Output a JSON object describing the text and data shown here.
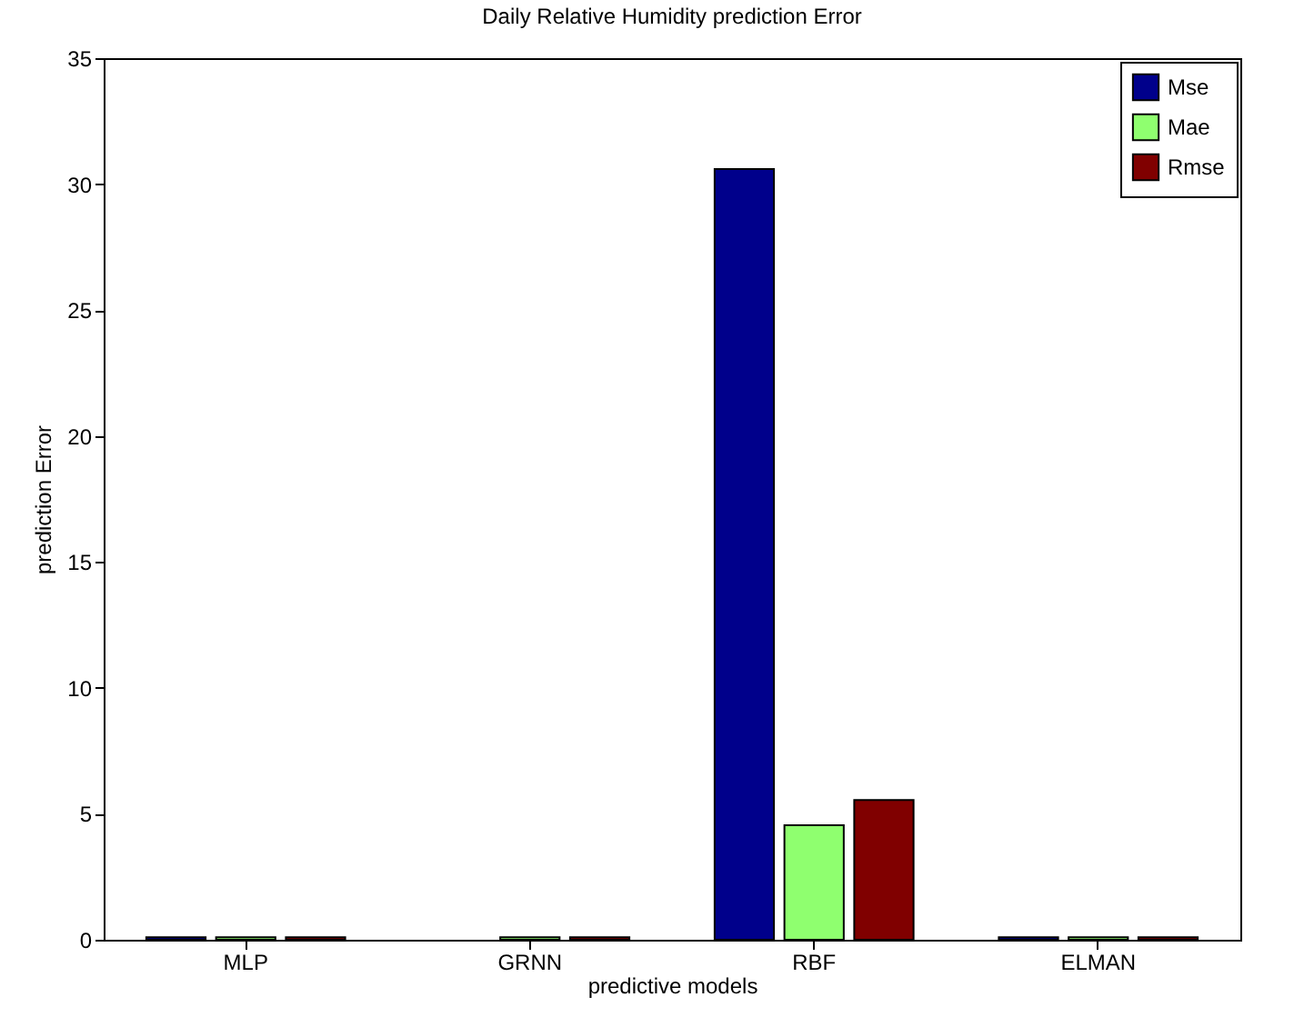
{
  "chart_data": {
    "type": "bar",
    "title": "Daily Relative Humidity prediction Error",
    "xlabel": "predictive models",
    "ylabel": "prediction Error",
    "categories": [
      "MLP",
      "GRNN",
      "RBF",
      "ELMAN"
    ],
    "series": [
      {
        "name": "Mse",
        "color": "#00008b",
        "values": [
          0.1,
          null,
          30.6,
          0.1
        ]
      },
      {
        "name": "Mae",
        "color": "#8fff6f",
        "values": [
          0.1,
          0.1,
          4.55,
          0.1
        ]
      },
      {
        "name": "Rmse",
        "color": "#800000",
        "values": [
          0.1,
          0.1,
          5.55,
          0.1
        ]
      }
    ],
    "ylim": [
      0,
      35
    ],
    "yticks": [
      0,
      5,
      10,
      15,
      20,
      25,
      30,
      35
    ],
    "grid": false,
    "legend": "top right"
  }
}
